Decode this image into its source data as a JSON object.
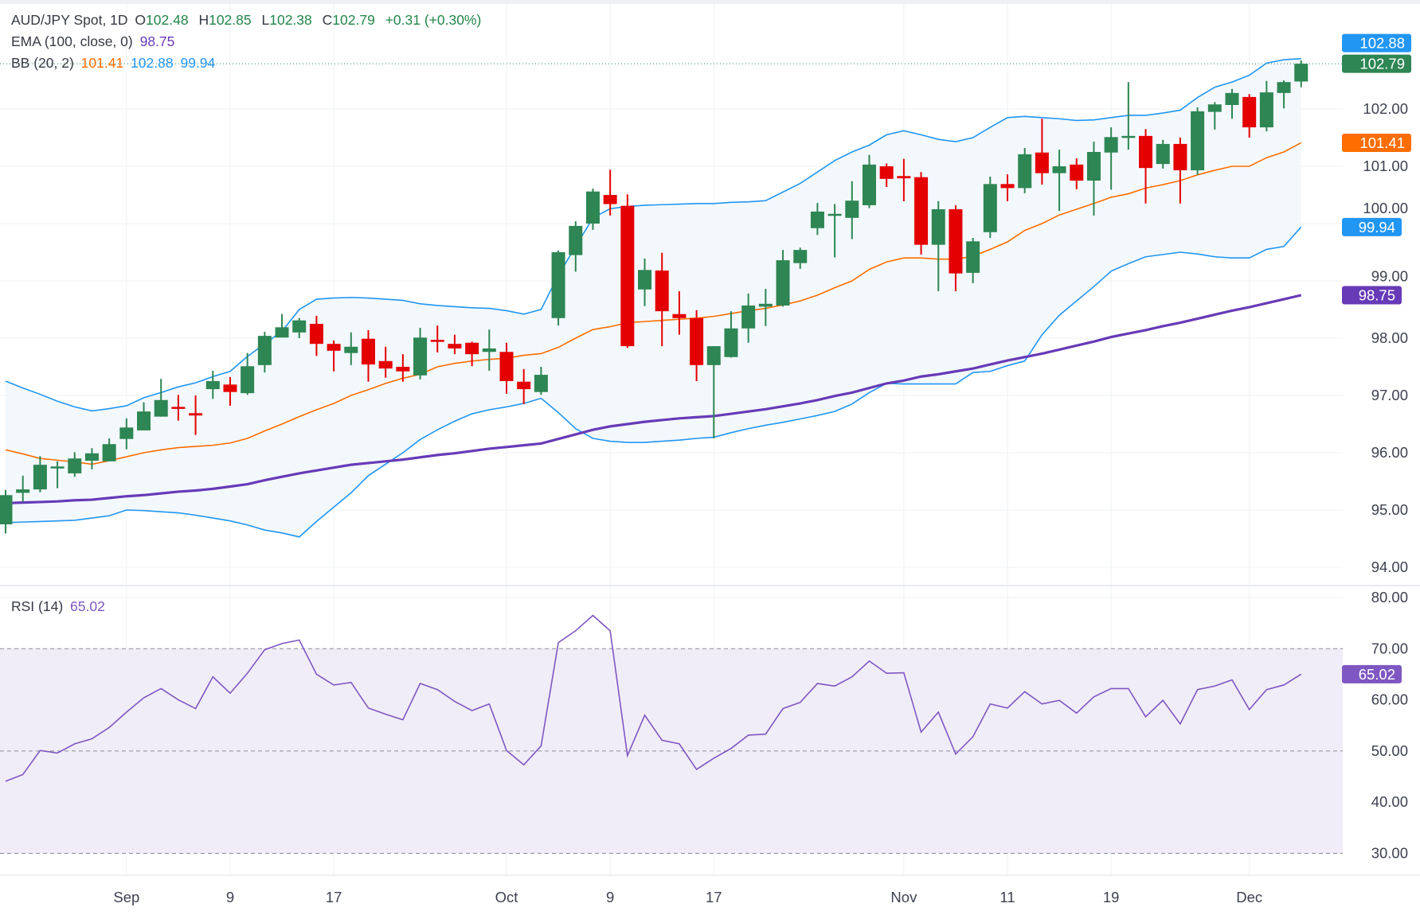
{
  "header": {
    "symbol": "AUD/JPY Spot, 1D",
    "ohlc": [
      {
        "label": "O",
        "value": "102.48"
      },
      {
        "label": "H",
        "value": "102.85"
      },
      {
        "label": "L",
        "value": "102.38"
      },
      {
        "label": "C",
        "value": "102.79"
      }
    ],
    "change": "+0.31 (+0.30%)",
    "ema": {
      "label": "EMA (100, close, 0)",
      "value": "98.75"
    },
    "bb": {
      "label": "BB (20, 2)",
      "basis": "101.41",
      "upper": "102.88",
      "lower": "99.94"
    },
    "rsi": {
      "label": "RSI (14)",
      "value": "65.02"
    }
  },
  "colors": {
    "up": "#2d8653",
    "down": "#e50000",
    "bb_band": "#2196f3",
    "bb_basis": "#ff6d00",
    "ema": "#673ab7",
    "rsi": "#7e57c2",
    "rsi_zone": "#f1edf8",
    "band_fill": "#f3f8fd"
  },
  "chart_data": [
    {
      "type": "candlestick",
      "title": "AUD/JPY Spot, 1D",
      "ylim": [
        93.75,
        103.1
      ],
      "grid": true,
      "y_ticks": [
        "102.00",
        "101.00",
        "100.00",
        "99.00",
        "98.00",
        "97.00",
        "96.00",
        "95.00",
        "94.00"
      ],
      "x_ticks": [
        {
          "label": "Sep",
          "index": 7
        },
        {
          "label": "9",
          "index": 13
        },
        {
          "label": "17",
          "index": 19
        },
        {
          "label": "Oct",
          "index": 29
        },
        {
          "label": "9",
          "index": 35
        },
        {
          "label": "17",
          "index": 41
        },
        {
          "label": "Nov",
          "index": 52
        },
        {
          "label": "11",
          "index": 58
        },
        {
          "label": "19",
          "index": 64
        },
        {
          "label": "Dec",
          "index": 72
        }
      ],
      "ohlc": [
        [
          94.75,
          95.35,
          94.59,
          95.26
        ],
        [
          95.3,
          95.6,
          95.14,
          95.36
        ],
        [
          95.36,
          95.94,
          95.31,
          95.79
        ],
        [
          95.75,
          95.85,
          95.38,
          95.76
        ],
        [
          95.64,
          96.01,
          95.58,
          95.9
        ],
        [
          95.86,
          96.08,
          95.71,
          95.99
        ],
        [
          95.85,
          96.25,
          95.85,
          96.15
        ],
        [
          96.24,
          96.6,
          96.06,
          96.44
        ],
        [
          96.39,
          96.88,
          96.39,
          96.72
        ],
        [
          96.63,
          97.29,
          96.63,
          96.92
        ],
        [
          96.8,
          97.01,
          96.56,
          96.78
        ],
        [
          96.69,
          97.0,
          96.31,
          96.65
        ],
        [
          97.11,
          97.43,
          96.94,
          97.25
        ],
        [
          97.19,
          97.32,
          96.82,
          97.06
        ],
        [
          97.04,
          97.74,
          97.01,
          97.51
        ],
        [
          97.53,
          98.11,
          97.4,
          98.04
        ],
        [
          98.01,
          98.42,
          98.01,
          98.19
        ],
        [
          98.1,
          98.35,
          98.0,
          98.31
        ],
        [
          98.25,
          98.39,
          97.69,
          97.9
        ],
        [
          97.9,
          97.96,
          97.42,
          97.78
        ],
        [
          97.74,
          98.1,
          97.53,
          97.85
        ],
        [
          97.99,
          98.14,
          97.24,
          97.54
        ],
        [
          97.6,
          97.85,
          97.31,
          97.47
        ],
        [
          97.5,
          97.72,
          97.24,
          97.42
        ],
        [
          97.35,
          98.18,
          97.28,
          98.01
        ],
        [
          97.97,
          98.22,
          97.75,
          97.95
        ],
        [
          97.9,
          98.06,
          97.72,
          97.82
        ],
        [
          97.92,
          97.94,
          97.51,
          97.72
        ],
        [
          97.76,
          98.15,
          97.43,
          97.82
        ],
        [
          97.76,
          97.92,
          97.03,
          97.25
        ],
        [
          97.24,
          97.46,
          96.85,
          97.11
        ],
        [
          97.06,
          97.5,
          97.01,
          97.36
        ],
        [
          98.35,
          99.53,
          98.22,
          99.5
        ],
        [
          99.45,
          100.04,
          99.16,
          99.96
        ],
        [
          100.0,
          100.61,
          99.89,
          100.56
        ],
        [
          100.5,
          100.94,
          100.14,
          100.34
        ],
        [
          100.31,
          100.51,
          97.83,
          97.86
        ],
        [
          98.85,
          99.39,
          98.56,
          99.19
        ],
        [
          99.18,
          99.49,
          97.86,
          98.47
        ],
        [
          98.42,
          98.82,
          98.06,
          98.35
        ],
        [
          98.35,
          98.49,
          97.25,
          97.53
        ],
        [
          97.53,
          97.86,
          96.25,
          97.86
        ],
        [
          97.67,
          98.47,
          97.66,
          98.17
        ],
        [
          98.17,
          98.78,
          97.92,
          98.57
        ],
        [
          98.55,
          98.86,
          98.21,
          98.6
        ],
        [
          98.57,
          99.54,
          98.55,
          99.36
        ],
        [
          99.31,
          99.58,
          99.21,
          99.54
        ],
        [
          99.92,
          100.36,
          99.8,
          100.21
        ],
        [
          100.15,
          100.34,
          99.41,
          100.17
        ],
        [
          100.1,
          100.74,
          99.73,
          100.4
        ],
        [
          100.32,
          101.2,
          100.27,
          101.03
        ],
        [
          101.0,
          101.05,
          100.64,
          100.78
        ],
        [
          100.83,
          101.13,
          100.39,
          100.79
        ],
        [
          100.81,
          100.9,
          99.46,
          99.63
        ],
        [
          99.63,
          100.39,
          98.82,
          100.25
        ],
        [
          100.25,
          100.32,
          98.82,
          99.13
        ],
        [
          99.14,
          99.75,
          98.96,
          99.69
        ],
        [
          99.85,
          100.82,
          99.75,
          100.69
        ],
        [
          100.69,
          100.86,
          100.39,
          100.62
        ],
        [
          100.62,
          101.32,
          100.53,
          101.21
        ],
        [
          101.24,
          101.83,
          100.68,
          100.88
        ],
        [
          100.88,
          101.29,
          100.22,
          101.0
        ],
        [
          101.03,
          101.14,
          100.6,
          100.75
        ],
        [
          100.75,
          101.43,
          100.14,
          101.25
        ],
        [
          101.24,
          101.68,
          100.59,
          101.51
        ],
        [
          101.5,
          102.47,
          101.29,
          101.53
        ],
        [
          101.53,
          101.65,
          100.35,
          100.97
        ],
        [
          101.04,
          101.46,
          100.96,
          101.39
        ],
        [
          101.39,
          101.5,
          100.35,
          100.93
        ],
        [
          100.93,
          102.03,
          100.85,
          101.96
        ],
        [
          101.95,
          102.12,
          101.64,
          102.08
        ],
        [
          102.07,
          102.35,
          101.83,
          102.28
        ],
        [
          102.21,
          102.26,
          101.5,
          101.68
        ],
        [
          101.68,
          102.49,
          101.61,
          102.29
        ],
        [
          102.28,
          102.5,
          102.01,
          102.47
        ],
        [
          102.48,
          102.85,
          102.38,
          102.79
        ]
      ],
      "bb_upper": [
        97.25,
        97.13,
        97.02,
        96.9,
        96.8,
        96.73,
        96.77,
        96.82,
        96.96,
        97.05,
        97.15,
        97.22,
        97.33,
        97.42,
        97.68,
        97.9,
        98.12,
        98.5,
        98.68,
        98.7,
        98.71,
        98.7,
        98.68,
        98.66,
        98.6,
        98.57,
        98.55,
        98.53,
        98.52,
        98.48,
        98.42,
        98.5,
        99.1,
        99.6,
        100.1,
        100.26,
        100.3,
        100.32,
        100.33,
        100.34,
        100.35,
        100.35,
        100.37,
        100.38,
        100.4,
        100.55,
        100.7,
        100.9,
        101.1,
        101.25,
        101.37,
        101.55,
        101.62,
        101.55,
        101.47,
        101.43,
        101.5,
        101.68,
        101.85,
        101.87,
        101.85,
        101.83,
        101.8,
        101.81,
        101.85,
        101.89,
        101.89,
        101.93,
        101.98,
        102.2,
        102.38,
        102.47,
        102.59,
        102.8,
        102.86,
        102.88
      ],
      "bb_basis": [
        96.05,
        95.98,
        95.9,
        95.87,
        95.84,
        95.8,
        95.86,
        95.93,
        96.0,
        96.05,
        96.09,
        96.11,
        96.13,
        96.17,
        96.25,
        96.38,
        96.5,
        96.63,
        96.75,
        96.86,
        97.0,
        97.1,
        97.21,
        97.3,
        97.37,
        97.5,
        97.56,
        97.6,
        97.63,
        97.65,
        97.7,
        97.73,
        97.84,
        98.0,
        98.15,
        98.2,
        98.27,
        98.29,
        98.31,
        98.33,
        98.35,
        98.38,
        98.43,
        98.48,
        98.52,
        98.58,
        98.65,
        98.75,
        98.88,
        99.0,
        99.2,
        99.33,
        99.4,
        99.4,
        99.38,
        99.38,
        99.43,
        99.55,
        99.68,
        99.88,
        100.0,
        100.15,
        100.25,
        100.35,
        100.46,
        100.52,
        100.62,
        100.68,
        100.75,
        100.85,
        100.93,
        101.0,
        101.0,
        101.15,
        101.25,
        101.41
      ],
      "bb_lower": [
        94.78,
        94.79,
        94.8,
        94.81,
        94.82,
        94.86,
        94.9,
        95.0,
        94.99,
        94.97,
        94.95,
        94.91,
        94.86,
        94.81,
        94.74,
        94.65,
        94.6,
        94.53,
        94.8,
        95.05,
        95.3,
        95.6,
        95.8,
        96.0,
        96.23,
        96.4,
        96.55,
        96.68,
        96.75,
        96.8,
        96.86,
        96.95,
        96.7,
        96.42,
        96.25,
        96.2,
        96.18,
        96.18,
        96.2,
        96.22,
        96.25,
        96.27,
        96.35,
        96.42,
        96.48,
        96.53,
        96.59,
        96.65,
        96.72,
        96.85,
        97.05,
        97.21,
        97.2,
        97.2,
        97.2,
        97.2,
        97.4,
        97.42,
        97.52,
        97.6,
        98.06,
        98.4,
        98.65,
        98.9,
        99.17,
        99.3,
        99.42,
        99.46,
        99.5,
        99.47,
        99.42,
        99.4,
        99.4,
        99.55,
        99.6,
        99.94
      ],
      "ema100": [
        95.12,
        95.13,
        95.14,
        95.15,
        95.17,
        95.18,
        95.21,
        95.24,
        95.26,
        95.29,
        95.32,
        95.34,
        95.37,
        95.41,
        95.45,
        95.52,
        95.58,
        95.64,
        95.69,
        95.74,
        95.79,
        95.82,
        95.85,
        95.88,
        95.92,
        95.96,
        95.99,
        96.03,
        96.07,
        96.1,
        96.13,
        96.16,
        96.24,
        96.32,
        96.4,
        96.46,
        96.5,
        96.54,
        96.57,
        96.6,
        96.62,
        96.64,
        96.68,
        96.72,
        96.76,
        96.81,
        96.86,
        96.92,
        96.99,
        97.05,
        97.13,
        97.21,
        97.26,
        97.33,
        97.37,
        97.42,
        97.47,
        97.54,
        97.61,
        97.67,
        97.73,
        97.8,
        97.87,
        97.94,
        98.02,
        98.08,
        98.14,
        98.21,
        98.27,
        98.34,
        98.41,
        98.48,
        98.54,
        98.61,
        98.68,
        98.75
      ]
    },
    {
      "type": "line",
      "title": "RSI (14)",
      "ylim": [
        27,
        82
      ],
      "y_ticks": [
        "80.00",
        "70.00",
        "60.00",
        "50.00",
        "40.00",
        "30.00"
      ],
      "levels": [
        70,
        50,
        30
      ],
      "values": [
        44.1,
        45.4,
        50.1,
        49.6,
        51.4,
        52.4,
        54.6,
        57.6,
        60.4,
        62.2,
        60.0,
        58.3,
        64.5,
        61.3,
        65.2,
        69.8,
        71.0,
        71.7,
        65.0,
        62.9,
        63.4,
        58.4,
        57.2,
        56.1,
        63.2,
        62.0,
        59.7,
        57.9,
        59.2,
        50.1,
        47.3,
        51.0,
        71.2,
        73.5,
        76.5,
        73.5,
        49.1,
        57.0,
        52.1,
        51.4,
        46.4,
        48.6,
        50.5,
        53.1,
        53.3,
        58.3,
        59.5,
        63.2,
        62.7,
        64.5,
        67.6,
        65.2,
        65.3,
        53.7,
        57.6,
        49.4,
        52.8,
        59.2,
        58.4,
        61.6,
        59.2,
        59.9,
        57.4,
        60.6,
        62.2,
        62.2,
        56.7,
        59.9,
        55.3,
        62.0,
        62.7,
        63.9,
        58.1,
        62.0,
        62.9,
        65.02
      ]
    }
  ]
}
